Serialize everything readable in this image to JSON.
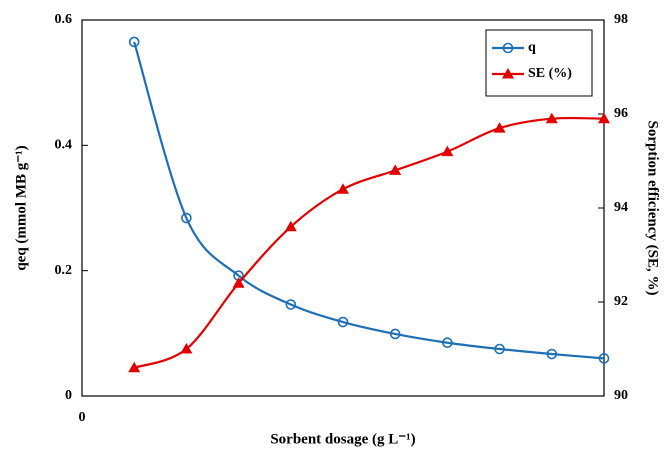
{
  "chart_data": {
    "type": "line",
    "x_label": "Sorbent dosage (g L⁻¹)",
    "y_label": "qeq (mmol MB g⁻¹)",
    "y2_label": "Sorption efficiency (SE, %)",
    "x": [
      1,
      2,
      3,
      4,
      5,
      6,
      7,
      8,
      9,
      10
    ],
    "xlim": [
      0,
      10
    ],
    "xticks": [
      0
    ],
    "ylim": [
      0,
      0.6
    ],
    "yticks": [
      0,
      0.2,
      0.4,
      0.6
    ],
    "y2lim": [
      90,
      98
    ],
    "y2ticks": [
      90,
      92,
      94,
      96,
      98
    ],
    "legend": "upper right",
    "series": [
      {
        "name": "q",
        "color": "#1f6fb5",
        "marker": "circle",
        "values": [
          0.565,
          0.284,
          0.192,
          0.146,
          0.118,
          0.099,
          0.085,
          0.075,
          0.067,
          0.06
        ]
      },
      {
        "name": "SE (%)",
        "color": "#e00000",
        "marker": "triangle",
        "axis": "y2",
        "values": [
          90.6,
          91.0,
          92.4,
          93.6,
          94.4,
          94.8,
          95.2,
          95.7,
          95.9,
          95.9
        ]
      }
    ]
  }
}
